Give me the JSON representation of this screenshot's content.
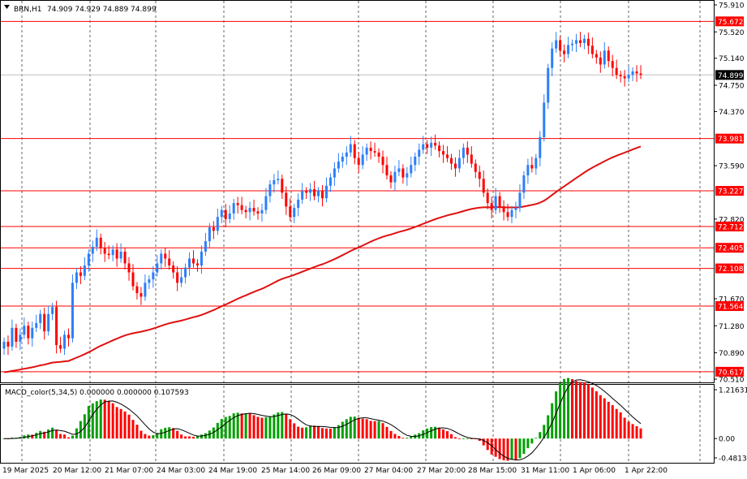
{
  "header": {
    "symbol": "BRN,H1",
    "ohlc": "74.909 74.929 74.889 74.899"
  },
  "macd_header": "MACD_color(5,34,5) 0.000000 0.000000 0.107593",
  "colors": {
    "bull": "#2d7ff9",
    "bear": "#ff0000",
    "level": "#ff0000",
    "ma": "#e01010",
    "hist_up": "#00a000",
    "hist_down": "#ff0000",
    "signal": "#000000",
    "grid": "#000000",
    "current": "#000000"
  },
  "chart_data": [
    {
      "type": "candlestick",
      "title": "BRN,H1",
      "ylim": [
        70.51,
        75.91
      ],
      "y_ticks": [
        "75.910",
        "75.520",
        "75.140",
        "74.750",
        "74.370",
        "73.590",
        "72.820",
        "71.670",
        "71.280",
        "70.890",
        "70.510"
      ],
      "x_ticks": [
        "19 Mar 2025",
        "20 Mar 12:00",
        "21 Mar 07:00",
        "24 Mar 03:00",
        "24 Mar 19:00",
        "25 Mar 14:00",
        "26 Mar 09:00",
        "27 Mar 04:00",
        "27 Mar 20:00",
        "28 Mar 15:00",
        "31 Mar 11:00",
        "1 Apr 06:00",
        "1 Apr 22:00"
      ],
      "current_price": 74.899,
      "current_price_label": "74.899",
      "levels": [
        {
          "value": 75.672,
          "label": "75.672"
        },
        {
          "value": 73.981,
          "label": "73.981"
        },
        {
          "value": 73.227,
          "label": "73.227"
        },
        {
          "value": 72.712,
          "label": "72.712"
        },
        {
          "value": 72.405,
          "label": "72.405"
        },
        {
          "value": 72.108,
          "label": "72.108"
        },
        {
          "value": 71.564,
          "label": "71.564"
        },
        {
          "value": 70.617,
          "label": "70.617"
        }
      ],
      "closes": [
        71.05,
        70.98,
        71.25,
        71.05,
        71.15,
        71.28,
        71.1,
        71.25,
        71.32,
        71.45,
        71.2,
        71.45,
        71.55,
        71.0,
        70.95,
        71.15,
        71.1,
        71.9,
        72.05,
        72.0,
        72.15,
        72.32,
        72.42,
        72.55,
        72.4,
        72.32,
        72.3,
        72.38,
        72.25,
        72.35,
        72.18,
        72.05,
        71.85,
        71.75,
        71.7,
        71.9,
        71.95,
        72.05,
        72.18,
        72.32,
        72.25,
        72.15,
        72.05,
        71.9,
        71.98,
        72.12,
        72.25,
        72.18,
        72.15,
        72.35,
        72.5,
        72.7,
        72.65,
        72.85,
        72.95,
        72.82,
        72.9,
        73.05,
        73.02,
        72.95,
        72.92,
        72.98,
        72.93,
        72.9,
        72.95,
        73.15,
        73.32,
        73.38,
        73.4,
        73.2,
        73.0,
        72.85,
        72.98,
        73.1,
        73.22,
        73.2,
        73.25,
        73.15,
        73.22,
        73.12,
        73.3,
        73.42,
        73.55,
        73.65,
        73.72,
        73.78,
        73.9,
        73.7,
        73.6,
        73.75,
        73.85,
        73.8,
        73.78,
        73.72,
        73.6,
        73.45,
        73.35,
        73.5,
        73.55,
        73.42,
        73.48,
        73.6,
        73.72,
        73.82,
        73.9,
        73.85,
        73.92,
        73.88,
        73.8,
        73.75,
        73.7,
        73.62,
        73.55,
        73.7,
        73.85,
        73.75,
        73.62,
        73.5,
        73.4,
        73.2,
        73.05,
        72.95,
        73.15,
        73.0,
        72.92,
        72.85,
        72.95,
        72.98,
        73.2,
        73.45,
        73.6,
        73.55,
        73.7,
        74.0,
        74.5,
        75.0,
        75.28,
        75.4,
        75.25,
        75.2,
        75.33,
        75.35,
        75.4,
        75.36,
        75.42,
        75.32,
        75.2,
        75.15,
        75.05,
        75.25,
        75.1,
        75.0,
        74.9,
        74.88,
        74.85,
        74.9,
        74.95,
        74.92,
        74.899
      ]
    },
    {
      "type": "bar",
      "title": "MACD_color(5,34,5)",
      "ylim": [
        -0.48135,
        1.216318
      ],
      "y_ticks": [
        "1.216318",
        "0.00",
        "-0.481350"
      ],
      "values_label": "0.000000 0.000000 0.107593"
    }
  ]
}
